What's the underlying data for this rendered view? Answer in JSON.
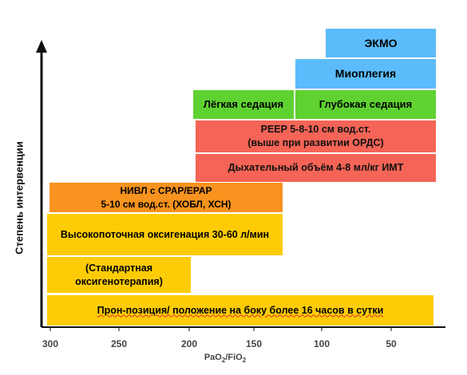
{
  "y_axis_label": "Степень интервенции",
  "x_axis": {
    "label_pa": "PaO",
    "label_sub1": "2",
    "label_fio": "/FiO",
    "label_sub2": "2",
    "ticks": [
      "300",
      "250",
      "200",
      "150",
      "100",
      "50"
    ]
  },
  "interventions": {
    "ecmo": "ЭКМО",
    "myoplegia": "Миоплегия",
    "light_sedation": "Лёгкая седация",
    "deep_sedation": "Глубокая седация",
    "peep_line1": "PEEP 5-8-10 см вод.ст.",
    "peep_line2": "(выше при развитии ОРДС)",
    "tidal_volume": "Дыхательный объём 4-8 мл/кг ИМТ",
    "niv_line1": "НИВЛ с CPAP/EPAP",
    "niv_line2": "5-10 см вод.ст. (ХОБЛ, ХСН)",
    "hfno": "Высокопоточная оксигенация 30-60 л/мин",
    "standard_line1": "(Стандартная",
    "standard_line2": "оксигенотерапия)",
    "prone": "Прон-позиция/ положение на боку более 16 часов в сутки"
  },
  "colors": {
    "blue": "#5cbcfb",
    "green": "#5fd231",
    "red": "#f56456",
    "orange": "#f7931e",
    "yellow": "#fecc06"
  }
}
